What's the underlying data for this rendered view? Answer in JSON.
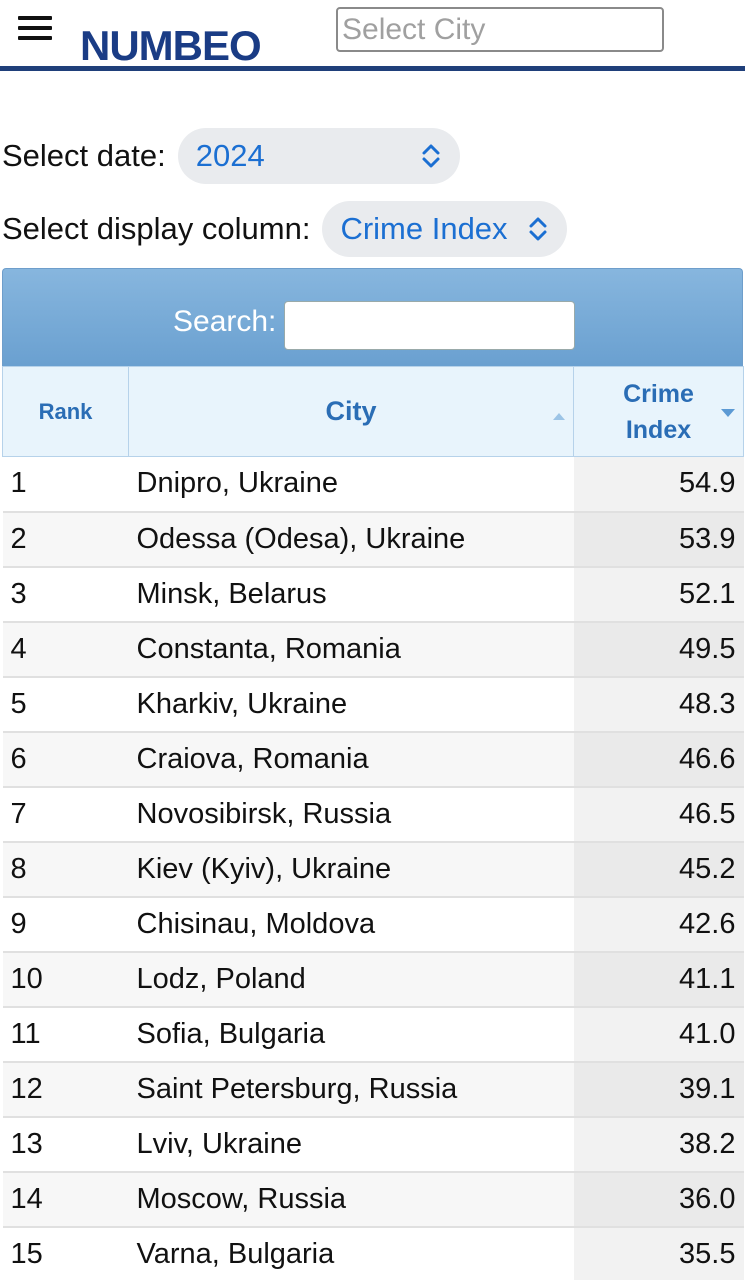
{
  "header": {
    "logo_text": "NUMBEO",
    "city_placeholder": "Select City"
  },
  "filters": {
    "date_label": "Select date:",
    "date_value": "2024",
    "column_label": "Select display column:",
    "column_value": "Crime Index"
  },
  "table": {
    "search_label": "Search:",
    "search_value": "",
    "columns": {
      "rank": "Rank",
      "city": "City",
      "crime_line1": "Crime",
      "crime_line2": "Index"
    },
    "rows": [
      {
        "rank": "1",
        "city": "Dnipro, Ukraine",
        "index": "54.9"
      },
      {
        "rank": "2",
        "city": "Odessa (Odesa), Ukraine",
        "index": "53.9"
      },
      {
        "rank": "3",
        "city": "Minsk, Belarus",
        "index": "52.1"
      },
      {
        "rank": "4",
        "city": "Constanta, Romania",
        "index": "49.5"
      },
      {
        "rank": "5",
        "city": "Kharkiv, Ukraine",
        "index": "48.3"
      },
      {
        "rank": "6",
        "city": "Craiova, Romania",
        "index": "46.6"
      },
      {
        "rank": "7",
        "city": "Novosibirsk, Russia",
        "index": "46.5"
      },
      {
        "rank": "8",
        "city": "Kiev (Kyiv), Ukraine",
        "index": "45.2"
      },
      {
        "rank": "9",
        "city": "Chisinau, Moldova",
        "index": "42.6"
      },
      {
        "rank": "10",
        "city": "Lodz, Poland",
        "index": "41.1"
      },
      {
        "rank": "11",
        "city": "Sofia, Bulgaria",
        "index": "41.0"
      },
      {
        "rank": "12",
        "city": "Saint Petersburg, Russia",
        "index": "39.1"
      },
      {
        "rank": "13",
        "city": "Lviv, Ukraine",
        "index": "38.2"
      },
      {
        "rank": "14",
        "city": "Moscow, Russia",
        "index": "36.0"
      },
      {
        "rank": "15",
        "city": "Varna, Bulgaria",
        "index": "35.5"
      }
    ]
  },
  "colors": {
    "brand": "#1a3c85",
    "accent": "#1b6fd2",
    "header_gradient": "#87b6de"
  }
}
